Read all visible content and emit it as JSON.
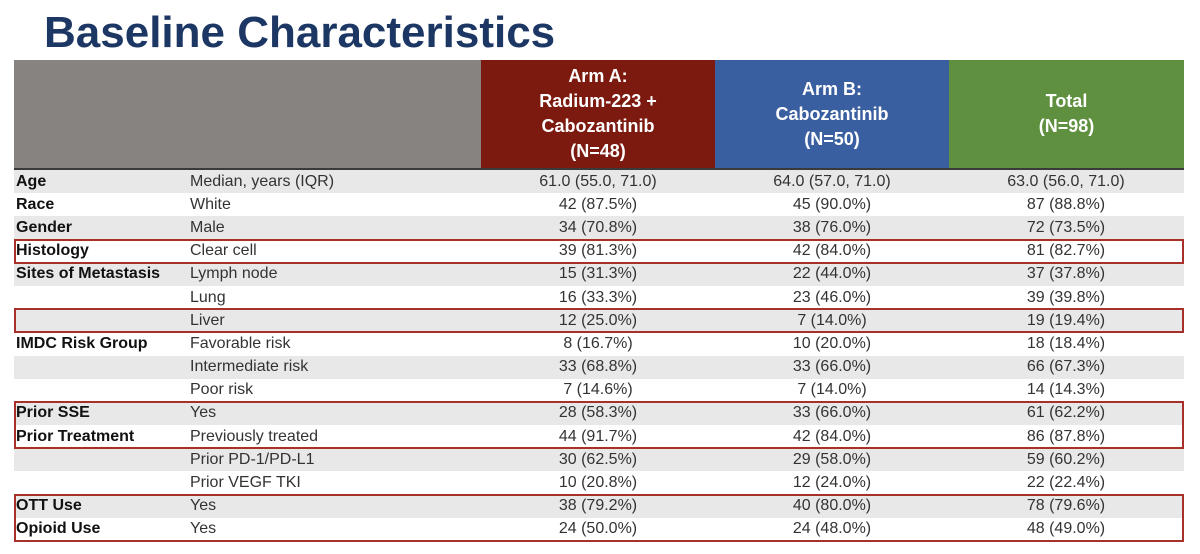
{
  "title": "Baseline Characteristics",
  "header": {
    "arm_a": [
      "Arm A:",
      "Radium-223 +",
      "Cabozantinib",
      "(N=48)"
    ],
    "arm_b": [
      "Arm B:",
      "Cabozantinib",
      "(N=50)"
    ],
    "total": [
      "Total",
      "(N=98)"
    ]
  },
  "colors": {
    "title": "#1c3764",
    "arm_a": "#7d1a0f",
    "arm_b": "#3a5fa0",
    "total": "#5f9040",
    "highlight": "#a8302a"
  },
  "rows": [
    {
      "cat": "Age",
      "sub": "Median, years (IQR)",
      "a": "61.0 (55.0, 71.0)",
      "b": "64.0 (57.0, 71.0)",
      "t": "63.0 (56.0, 71.0)"
    },
    {
      "cat": "Race",
      "sub": "White",
      "a": "42 (87.5%)",
      "b": "45 (90.0%)",
      "t": "87 (88.8%)"
    },
    {
      "cat": "Gender",
      "sub": "Male",
      "a": "34 (70.8%)",
      "b": "38 (76.0%)",
      "t": "72 (73.5%)"
    },
    {
      "cat": "Histology",
      "sub": "Clear cell",
      "a": "39 (81.3%)",
      "b": "42 (84.0%)",
      "t": "81 (82.7%)"
    },
    {
      "cat": "Sites of Metastasis",
      "sub": "Lymph node",
      "a": "15 (31.3%)",
      "b": "22 (44.0%)",
      "t": "37 (37.8%)"
    },
    {
      "cat": "",
      "sub": "Lung",
      "a": "16 (33.3%)",
      "b": "23 (46.0%)",
      "t": "39 (39.8%)"
    },
    {
      "cat": "",
      "sub": "Liver",
      "a": "12 (25.0%)",
      "b": "7 (14.0%)",
      "t": "19 (19.4%)"
    },
    {
      "cat": "IMDC Risk Group",
      "sub": "Favorable risk",
      "a": "8 (16.7%)",
      "b": "10 (20.0%)",
      "t": "18 (18.4%)"
    },
    {
      "cat": "",
      "sub": "Intermediate risk",
      "a": "33 (68.8%)",
      "b": "33 (66.0%)",
      "t": "66 (67.3%)"
    },
    {
      "cat": "",
      "sub": "Poor risk",
      "a": "7 (14.6%)",
      "b": "7 (14.0%)",
      "t": "14 (14.3%)"
    },
    {
      "cat": "Prior SSE",
      "sub": "Yes",
      "a": "28 (58.3%)",
      "b": "33 (66.0%)",
      "t": "61 (62.2%)"
    },
    {
      "cat": "Prior Treatment",
      "sub": "Previously treated",
      "a": "44 (91.7%)",
      "b": "42 (84.0%)",
      "t": "86 (87.8%)"
    },
    {
      "cat": "",
      "sub": "Prior PD-1/PD-L1",
      "a": "30 (62.5%)",
      "b": "29 (58.0%)",
      "t": "59 (60.2%)"
    },
    {
      "cat": "",
      "sub": "Prior VEGF TKI",
      "a": "10 (20.8%)",
      "b": "12 (24.0%)",
      "t": "22 (22.4%)"
    },
    {
      "cat": "OTT Use",
      "sub": "Yes",
      "a": "38 (79.2%)",
      "b": "40 (80.0%)",
      "t": "78 (79.6%)"
    },
    {
      "cat": "Opioid Use",
      "sub": "Yes",
      "a": "24 (50.0%)",
      "b": "24 (48.0%)",
      "t": "48 (49.0%)"
    }
  ]
}
